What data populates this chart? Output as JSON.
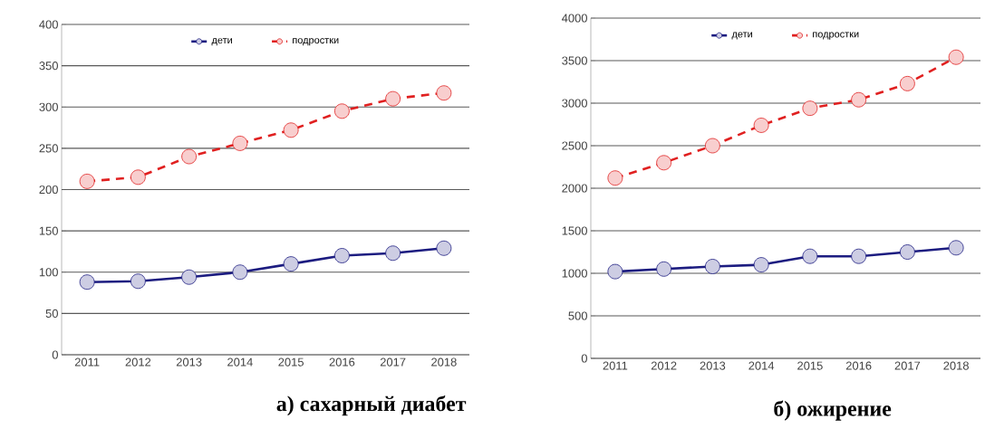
{
  "chart_data": [
    {
      "type": "line",
      "title": "а) сахарный диабет",
      "categories": [
        "2011",
        "2012",
        "2013",
        "2014",
        "2015",
        "2016",
        "2017",
        "2018"
      ],
      "series": [
        {
          "name": "дети",
          "color": "#1c1c80",
          "line_style": "solid",
          "values": [
            88,
            89,
            94,
            100,
            110,
            120,
            123,
            129
          ]
        },
        {
          "name": "подростки",
          "color": "#e02020",
          "line_style": "dashed",
          "values": [
            210,
            215,
            240,
            256,
            272,
            295,
            310,
            317
          ]
        }
      ],
      "ylim": [
        0,
        400
      ],
      "yticks": [
        0,
        50,
        100,
        150,
        200,
        250,
        300,
        350,
        400
      ],
      "grid": "y",
      "legend": "top",
      "marker": "circle"
    },
    {
      "type": "line",
      "title": "б) ожирение",
      "categories": [
        "2011",
        "2012",
        "2013",
        "2014",
        "2015",
        "2016",
        "2017",
        "2018"
      ],
      "series": [
        {
          "name": "дети",
          "color": "#1c1c80",
          "line_style": "solid",
          "values": [
            1020,
            1050,
            1080,
            1100,
            1200,
            1200,
            1250,
            1300
          ]
        },
        {
          "name": "подростки",
          "color": "#e02020",
          "line_style": "dashed",
          "values": [
            2120,
            2300,
            2500,
            2740,
            2940,
            3040,
            3230,
            3540
          ]
        }
      ],
      "ylim": [
        0,
        4000
      ],
      "yticks": [
        0,
        500,
        1000,
        1500,
        2000,
        2500,
        3000,
        3500,
        4000
      ],
      "grid": "y",
      "legend": "top",
      "marker": "circle"
    }
  ]
}
